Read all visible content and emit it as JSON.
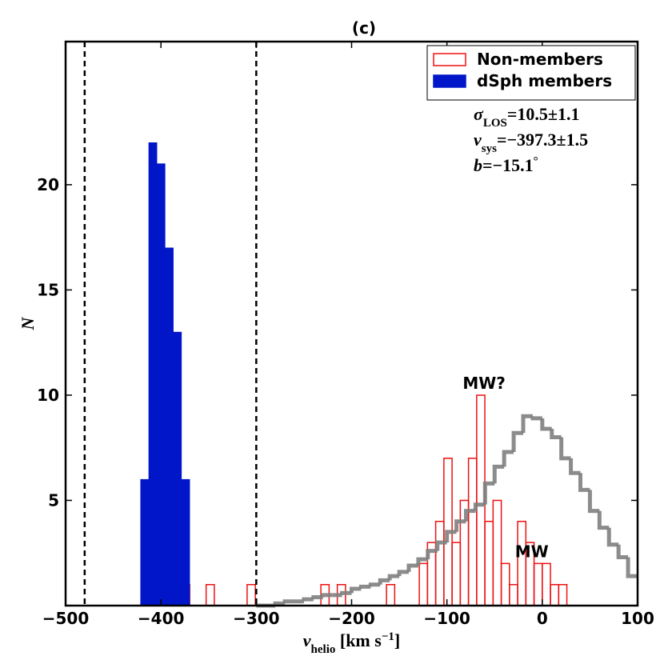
{
  "chart_data": {
    "type": "histogram",
    "title": "(c)",
    "xlabel": [
      {
        "text": "v",
        "style": "italic"
      },
      {
        "text": "helio",
        "style": "sub"
      },
      {
        "text": " [km s",
        "style": "normal"
      },
      {
        "text": "−1",
        "style": "sup"
      },
      {
        "text": "]",
        "style": "normal"
      }
    ],
    "ylabel": [
      {
        "text": "N",
        "style": "italic"
      }
    ],
    "xlim": [
      -500,
      100
    ],
    "ylim": [
      0,
      26.8
    ],
    "xticks": [
      {
        "value": -500,
        "label": "−500"
      },
      {
        "value": -400,
        "label": "−400"
      },
      {
        "value": -300,
        "label": "−300"
      },
      {
        "value": -200,
        "label": "−200"
      },
      {
        "value": -100,
        "label": "−100"
      },
      0,
      100
    ],
    "yticks": [
      5,
      10,
      15,
      20
    ],
    "legend": "upper right",
    "vlines": [
      -480,
      -300
    ],
    "series": [
      {
        "name": "Non-members",
        "color": "#ee1111",
        "style": "outline",
        "bins": [
          -421.4,
          -412.8,
          -404.2,
          -395.6,
          -387.0,
          -378.4,
          -369.8,
          -361.2,
          -352.6,
          -344.0,
          -335.4,
          -326.8,
          -318.2,
          -309.6,
          -301.0,
          -292.4,
          -283.8,
          -275.2,
          -266.6,
          -258.0,
          -249.4,
          -240.8,
          -232.2,
          -223.6,
          -215.0,
          -206.4,
          -197.8,
          -189.2,
          -180.6,
          -172.0,
          -163.4,
          -154.8,
          -146.2,
          -137.6,
          -129.0,
          -120.4,
          -111.8,
          -103.2,
          -94.6,
          -86.0,
          -77.4,
          -68.8,
          -60.2,
          -51.6,
          -43.0,
          -34.4,
          -25.8,
          -17.2,
          -8.6,
          0.0,
          8.6,
          17.2,
          25.8
        ],
        "values": [
          0,
          1,
          2,
          1,
          0,
          1,
          0,
          0,
          1,
          0,
          0,
          0,
          0,
          1,
          0,
          0,
          0,
          0,
          0,
          0,
          0,
          0,
          1,
          0,
          1,
          0,
          0,
          0,
          0,
          0,
          1,
          0,
          0,
          0,
          2,
          3,
          4,
          7,
          3,
          5,
          7,
          10,
          4,
          5,
          2,
          1,
          4,
          3,
          2,
          2,
          1,
          1
        ]
      },
      {
        "name": "dSph members",
        "color": "#0016c8",
        "style": "filled",
        "bins": [
          -421.4,
          -412.8,
          -404.2,
          -395.6,
          -387.0,
          -378.4,
          -369.8
        ],
        "values": [
          6,
          22,
          21,
          17,
          13,
          6
        ]
      },
      {
        "color": "#808080",
        "style": "step",
        "bins": [
          -300,
          -290,
          -280,
          -270,
          -260,
          -250,
          -240,
          -230,
          -220,
          -210,
          -200,
          -190,
          -180,
          -170,
          -160,
          -150,
          -140,
          -130,
          -120,
          -110,
          -100,
          -90,
          -80,
          -70,
          -60,
          -50,
          -40,
          -30,
          -20,
          -10,
          0,
          10,
          20,
          30,
          40,
          50,
          60,
          70,
          80,
          90,
          100
        ],
        "values": [
          0,
          0,
          0.1,
          0.2,
          0.2,
          0.3,
          0.4,
          0.5,
          0.5,
          0.6,
          0.8,
          0.9,
          1.0,
          1.2,
          1.4,
          1.6,
          1.9,
          2.2,
          2.6,
          3.0,
          3.5,
          4.0,
          4.5,
          4.8,
          5.8,
          6.6,
          7.3,
          8.2,
          9.0,
          8.9,
          8.4,
          8.0,
          7.0,
          6.3,
          5.5,
          4.5,
          3.7,
          2.9,
          2.3,
          1.4
        ]
      }
    ],
    "annotations": [
      {
        "text": "MW?",
        "x": -61,
        "y": 10.3
      },
      {
        "text": "MW",
        "x": -11,
        "y": 2.3
      }
    ],
    "stats": [
      [
        {
          "text": "σ",
          "style": "italic"
        },
        {
          "text": "LOS",
          "style": "sub"
        },
        {
          "text": "=10.5±1.1",
          "style": "normal"
        }
      ],
      [
        {
          "text": "v",
          "style": "italic"
        },
        {
          "text": "sys",
          "style": "sub"
        },
        {
          "text": "=−397.3±1.5",
          "style": "normal"
        }
      ],
      [
        {
          "text": "b",
          "style": "italic"
        },
        {
          "text": "=−15.1",
          "style": "normal"
        },
        {
          "text": "°",
          "style": "sup"
        }
      ]
    ]
  }
}
